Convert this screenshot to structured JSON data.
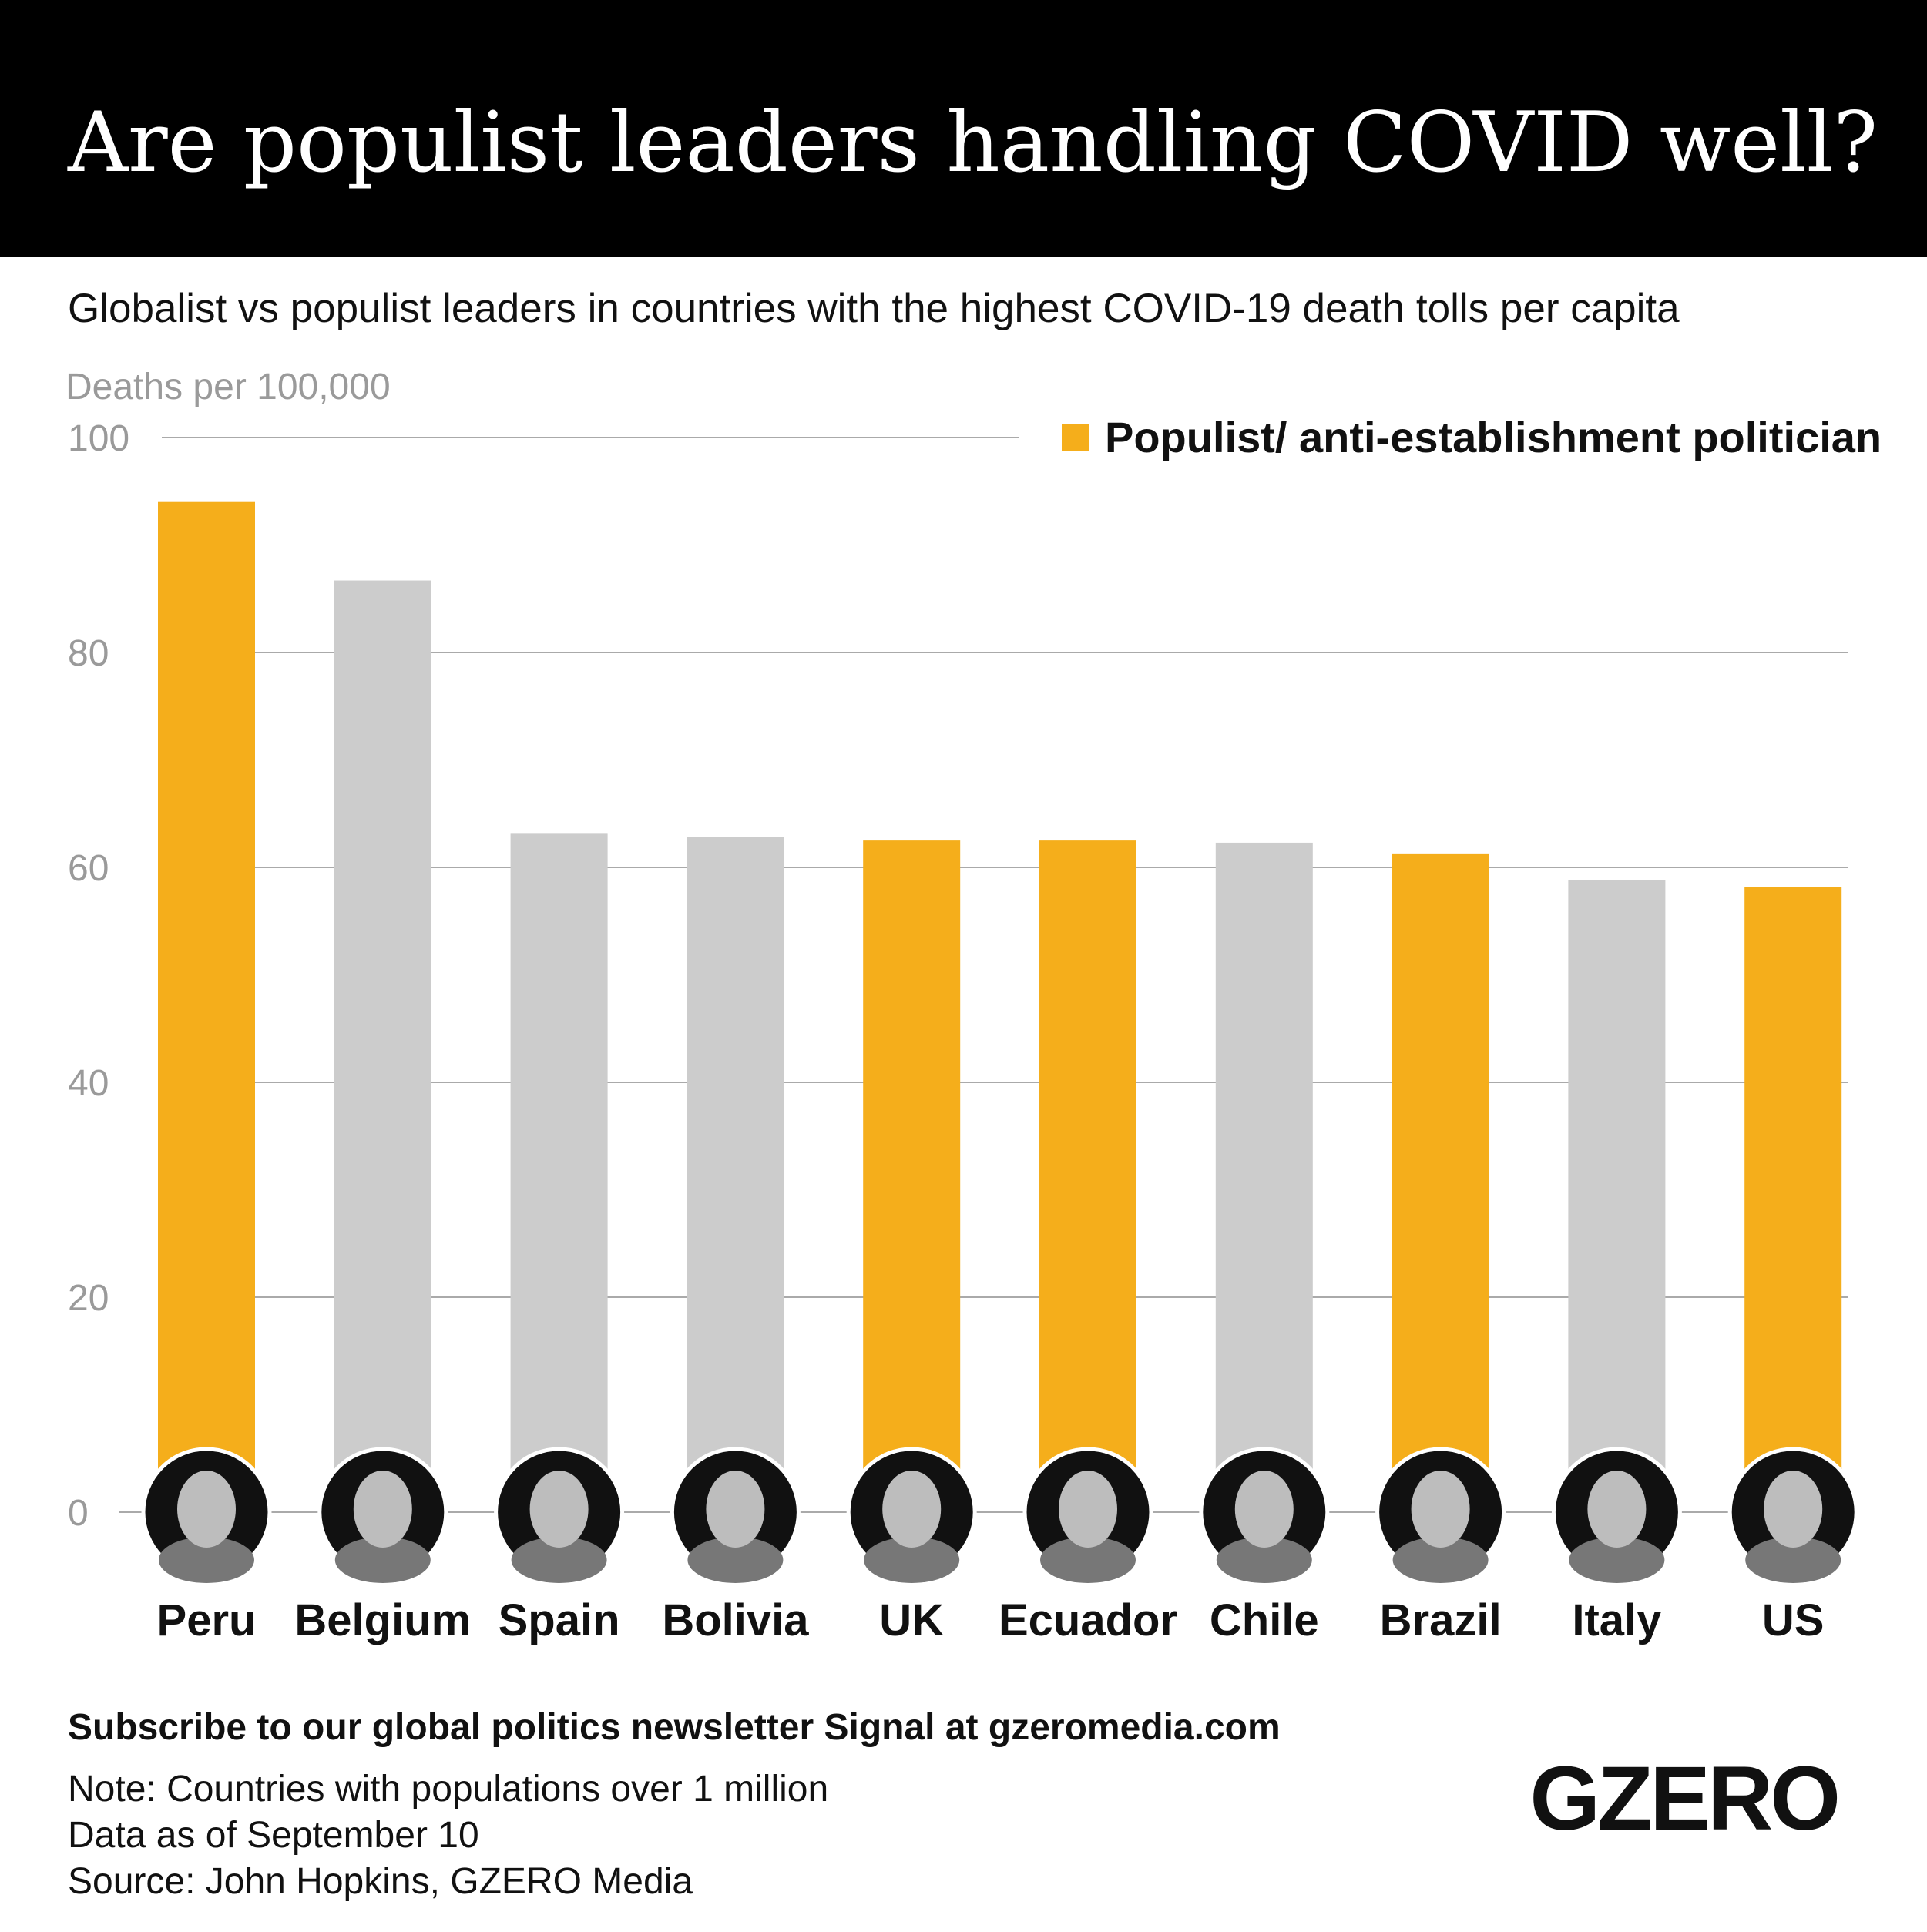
{
  "header": {
    "title": "Are populist leaders handling COVID well?"
  },
  "chart_data": {
    "type": "bar",
    "title": "Are populist leaders handling COVID well?",
    "subtitle": "Globalist vs populist leaders in countries with the highest COVID-19 death tolls per capita",
    "ylabel": "Deaths per 100,000",
    "xlabel": "",
    "ylim": [
      0,
      100
    ],
    "yticks": [
      0,
      20,
      40,
      60,
      80,
      100
    ],
    "grid": true,
    "legend": {
      "placement": "top-right",
      "entries": [
        {
          "label": "Populist/ anti-establishment politician",
          "color": "#F5AE1B"
        }
      ]
    },
    "categories": [
      "Peru",
      "Belgium",
      "Spain",
      "Bolivia",
      "UK",
      "Ecuador",
      "Chile",
      "Brazil",
      "Italy",
      "US"
    ],
    "values": [
      94.0,
      86.7,
      63.2,
      62.8,
      62.5,
      62.5,
      62.3,
      61.3,
      58.8,
      58.2
    ],
    "populist": [
      true,
      false,
      false,
      false,
      true,
      true,
      false,
      true,
      false,
      true
    ]
  },
  "colors": {
    "populist": "#F5AE1B",
    "other": "#CCCCCC",
    "header_bg": "#000000",
    "grid": "#AAAAAA"
  },
  "footer": {
    "subscribe": "Subscribe to our global politics newsletter Signal at gzeromedia.com",
    "note": "Note: Countries with populations over 1 million",
    "date": "Data as of September 10",
    "source": "Source: John Hopkins, GZERO Media",
    "logo": "GZERO"
  }
}
